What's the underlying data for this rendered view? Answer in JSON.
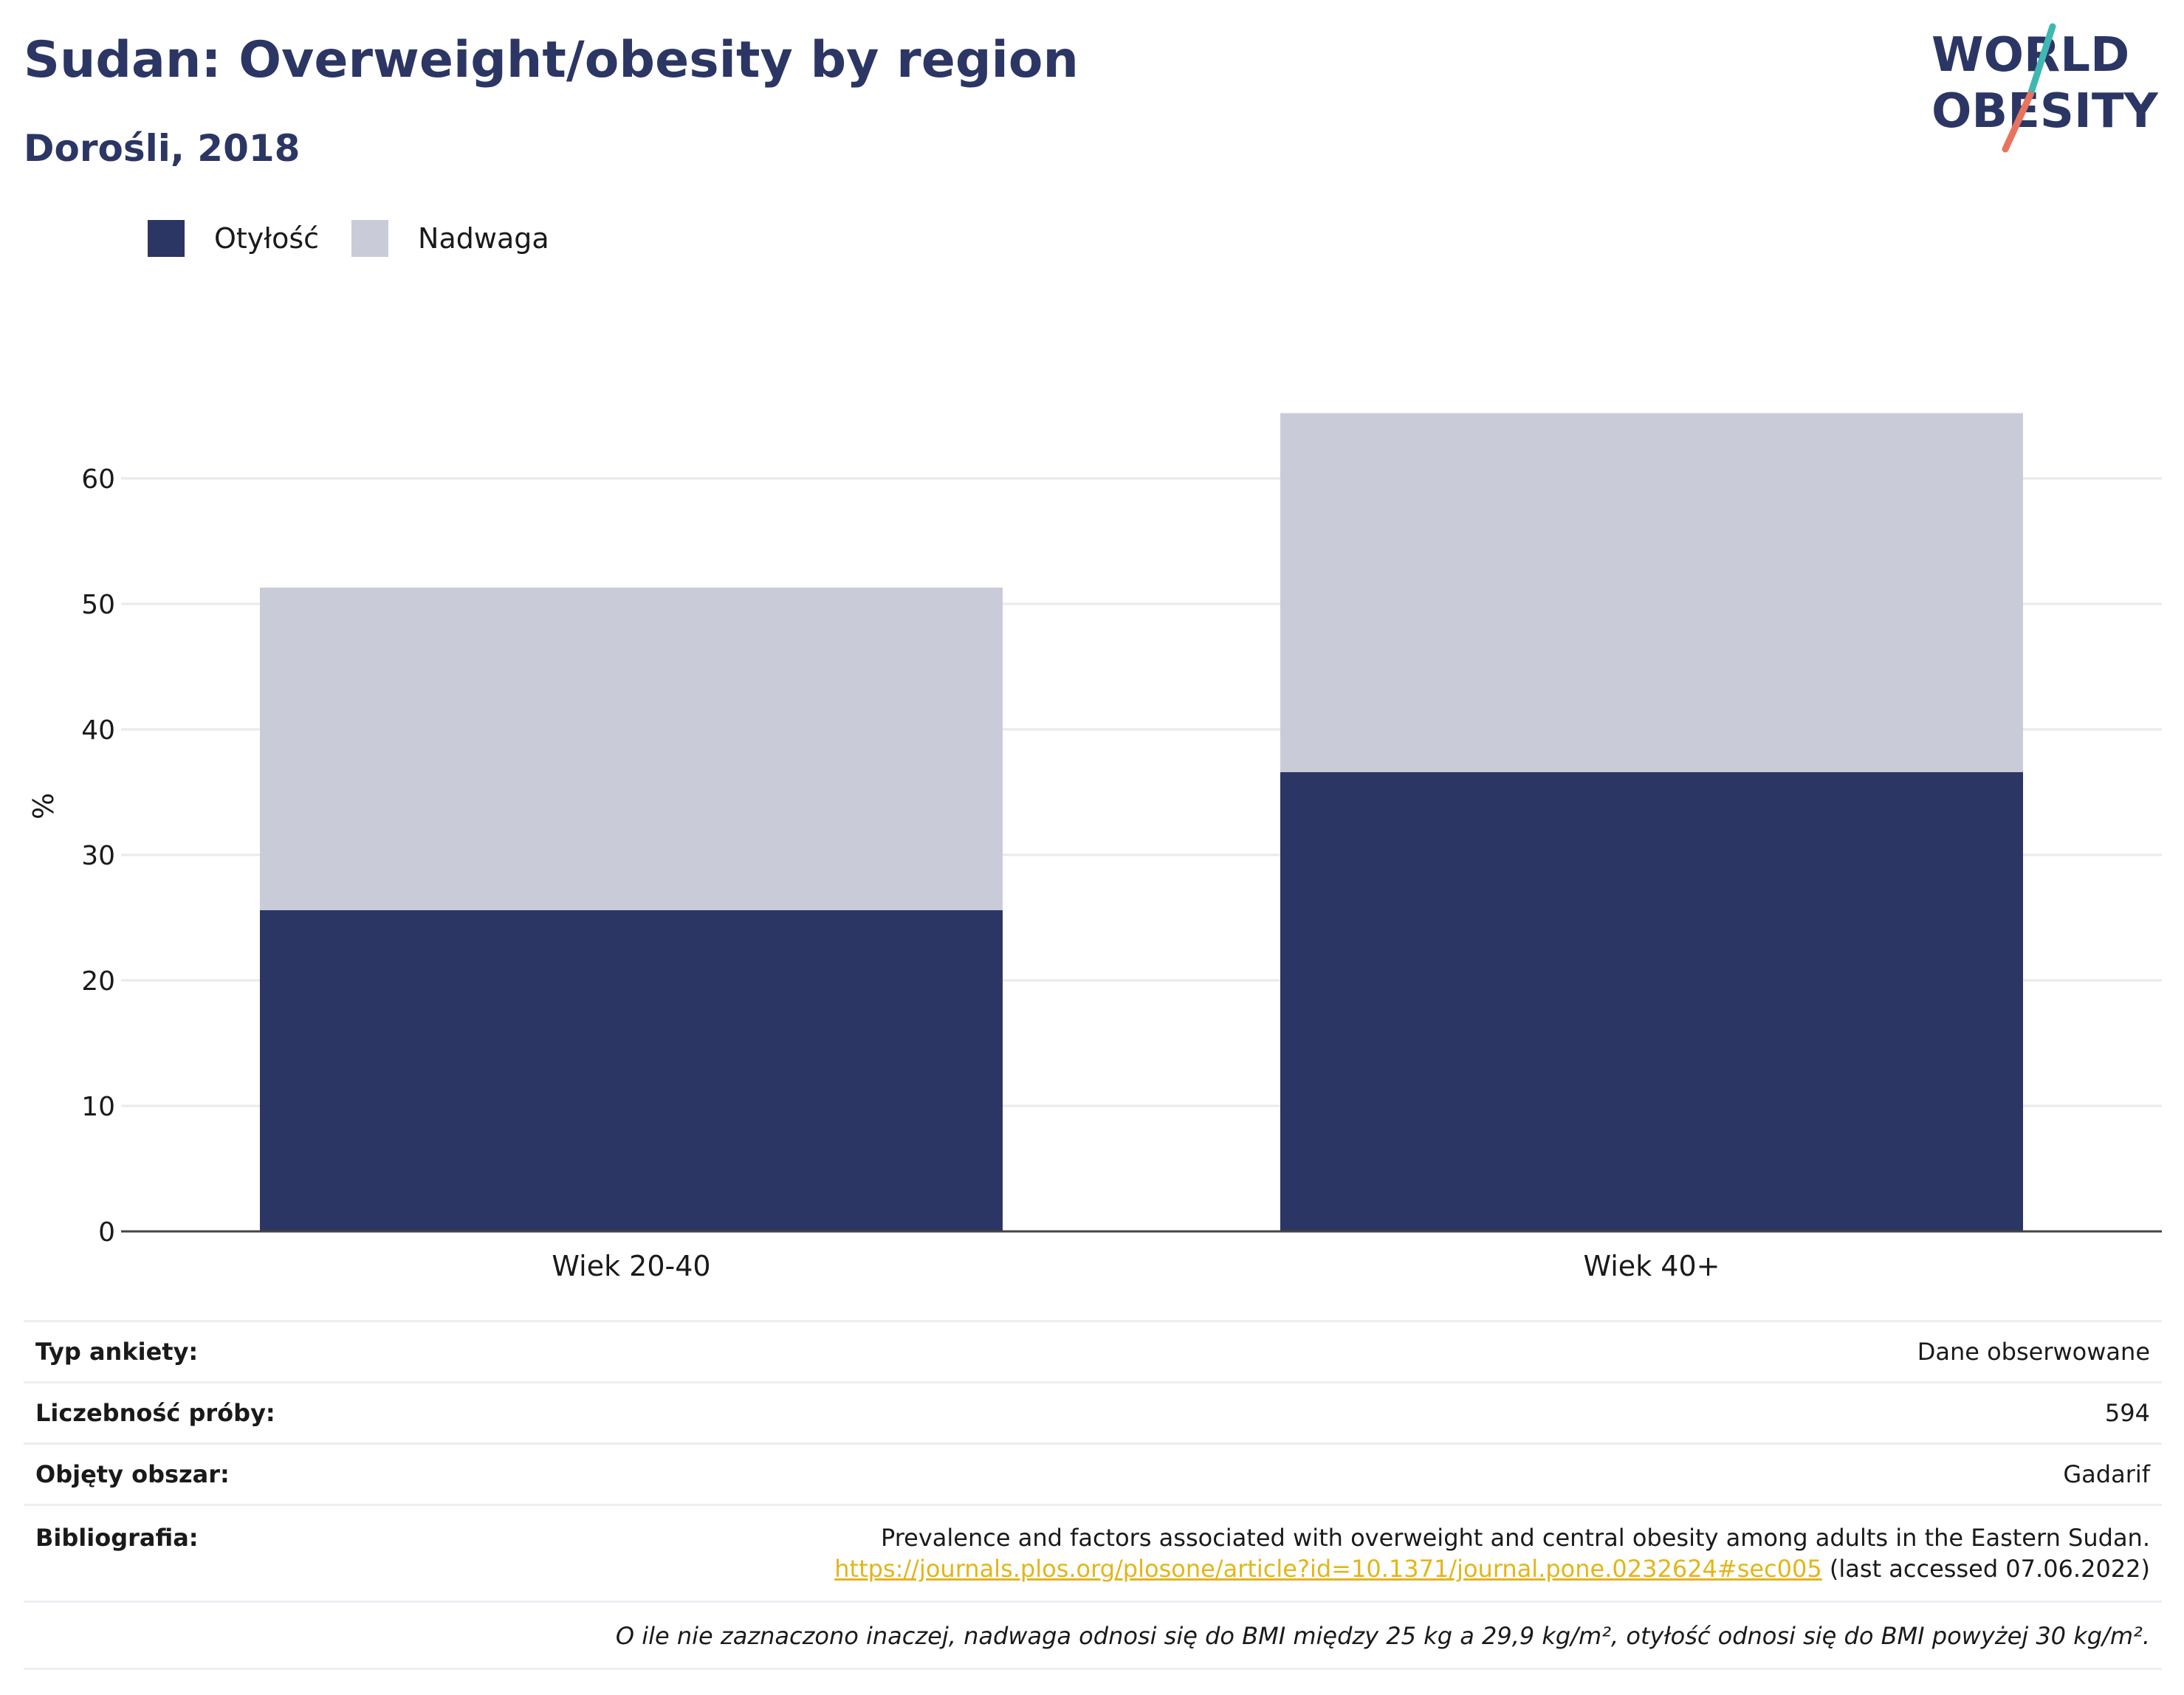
{
  "header": {
    "title": "Sudan: Overweight/obesity by region",
    "subtitle": "Dorośli, 2018"
  },
  "logo": {
    "line1": "WORLD",
    "line2": "OBESITY",
    "colors": {
      "text": "#2b3664",
      "slash_teal": "#3fb8b2",
      "slash_coral": "#e8735e"
    }
  },
  "chart_data": {
    "type": "bar",
    "stacked": true,
    "categories": [
      "Wiek 20-40",
      "Wiek 40+"
    ],
    "series": [
      {
        "name": "Otyłość",
        "values": [
          25.6,
          36.6
        ],
        "color": "#2b3664"
      },
      {
        "name": "Nadwaga",
        "values": [
          25.7,
          28.6
        ],
        "color": "#c9ccd8"
      }
    ],
    "ylabel": "%",
    "xlabel": "",
    "ylim": [
      0,
      70
    ],
    "yticks": [
      0,
      10,
      20,
      30,
      40,
      50,
      60
    ],
    "grid": true,
    "legend_position": "top-left"
  },
  "info": {
    "survey_type": {
      "label": "Typ ankiety:",
      "value": "Dane obserwowane"
    },
    "sample_size": {
      "label": "Liczebność próby:",
      "value": "594"
    },
    "area": {
      "label": "Objęty obszar:",
      "value": "Gadarif"
    },
    "bibliography": {
      "label": "Bibliografia:",
      "text": "Prevalence and factors associated with overweight and central obesity among adults in the Eastern Sudan.",
      "url": "https://journals.plos.org/plosone/article?id=10.1371/journal.pone.0232624#sec005",
      "accessed": "(last accessed 07.06.2022)"
    },
    "note": "O ile nie zaznaczono inaczej, nadwaga odnosi się do BMI między 25 kg a 29,9 kg/m², otyłość odnosi się do BMI powyżej 30 kg/m²."
  }
}
